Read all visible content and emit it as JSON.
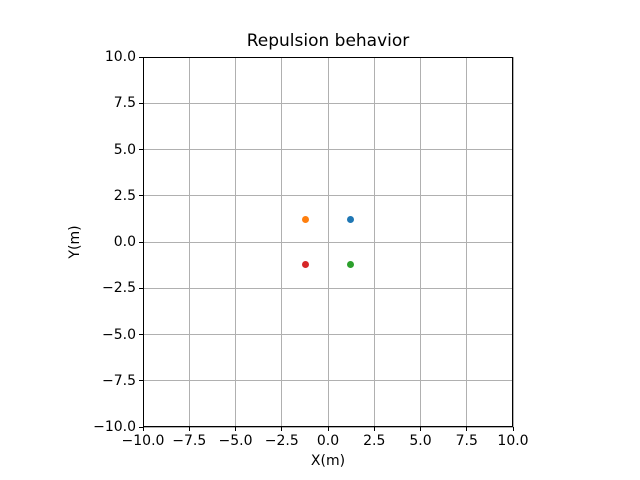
{
  "chart_data": {
    "type": "scatter",
    "title": "Repulsion behavior",
    "xlabel": "X(m)",
    "ylabel": "Y(m)",
    "xlim": [
      -10,
      10
    ],
    "ylim": [
      -10,
      10
    ],
    "xticks": [
      -10,
      -7.5,
      -5,
      -2.5,
      0,
      2.5,
      5,
      7.5,
      10
    ],
    "yticks": [
      -10,
      -7.5,
      -5,
      -2.5,
      0,
      2.5,
      5,
      7.5,
      10
    ],
    "grid": true,
    "legend": "none",
    "colors": {
      "grid": "#b0b0b0",
      "spine": "#000000",
      "background": "#ffffff"
    },
    "points": [
      {
        "x": 1.2,
        "y": 1.2,
        "color": "#1f77b4"
      },
      {
        "x": -1.2,
        "y": 1.2,
        "color": "#ff7f0e"
      },
      {
        "x": -1.2,
        "y": -1.2,
        "color": "#d62728"
      },
      {
        "x": 1.2,
        "y": -1.2,
        "color": "#2ca02c"
      }
    ]
  }
}
